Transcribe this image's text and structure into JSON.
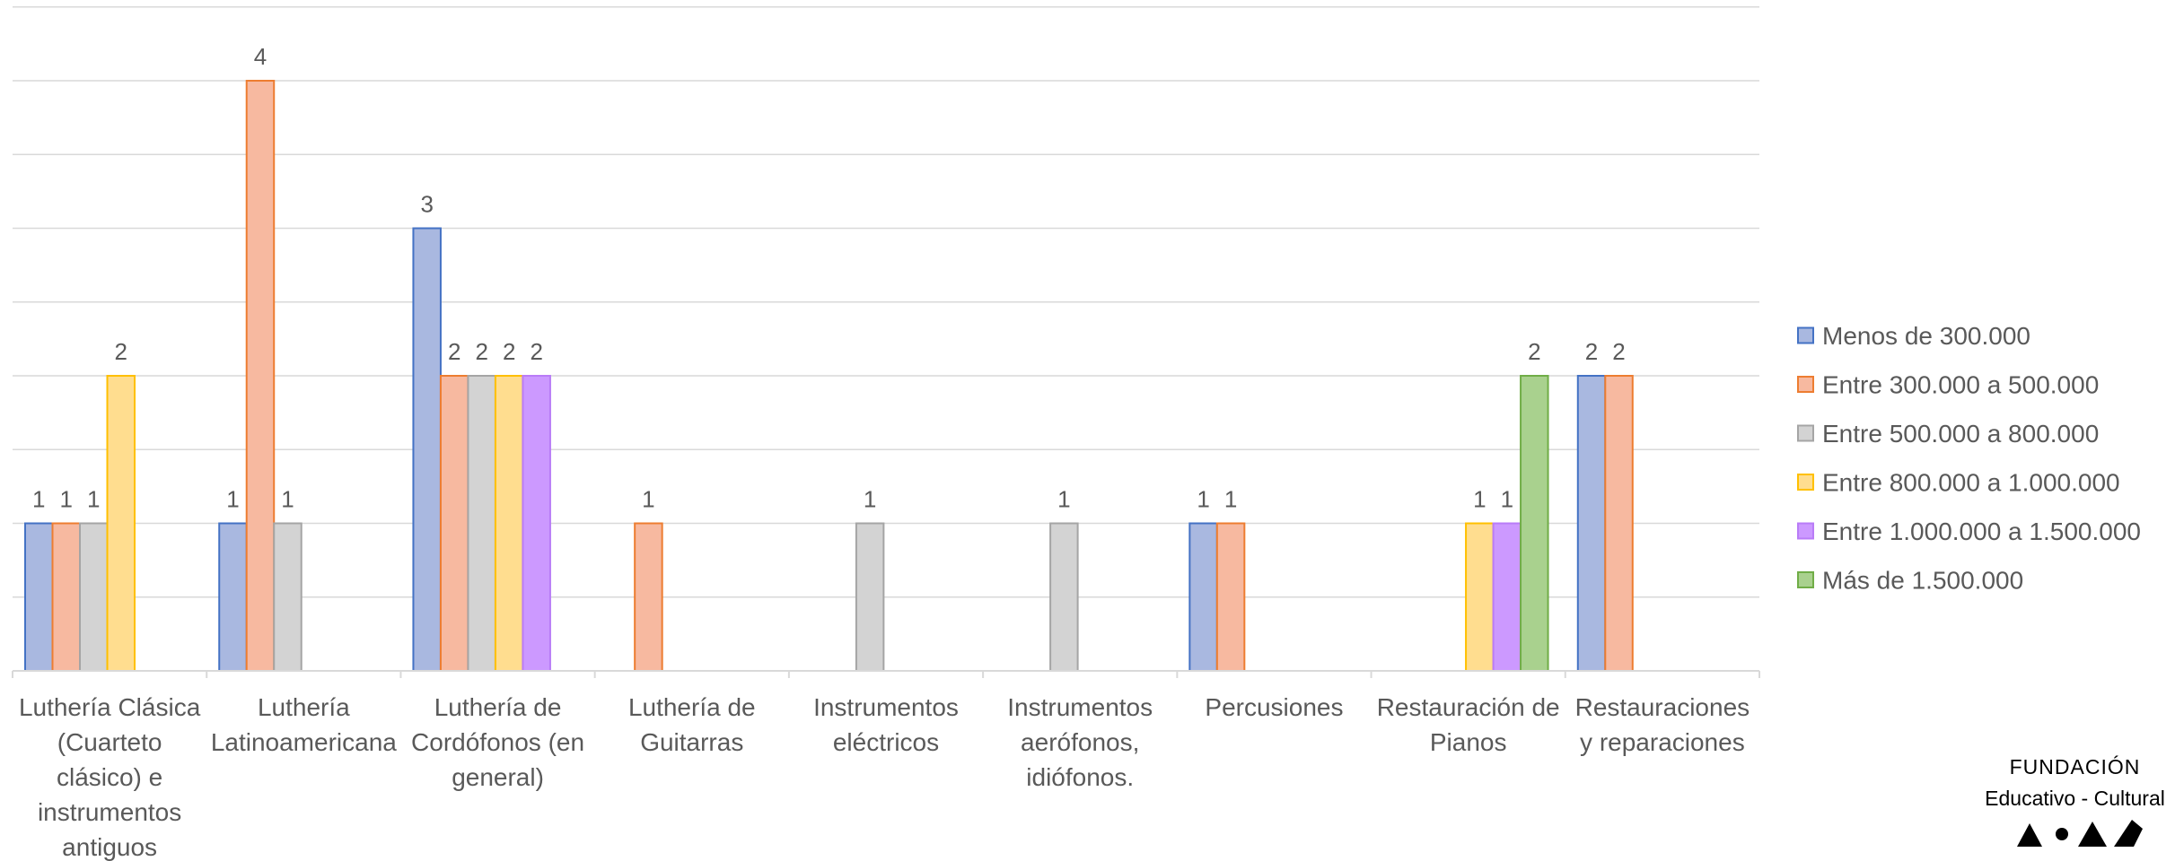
{
  "chart_data": {
    "type": "bar",
    "title": "",
    "xlabel": "",
    "ylabel": "",
    "ylim": [
      0,
      4.5
    ],
    "grid": true,
    "legend_position": "right",
    "categories": [
      [
        "Luthería Clásica",
        "(Cuarteto",
        "clásico) e",
        "instrumentos",
        "antiguos"
      ],
      [
        "Luthería",
        "Latinoamericana"
      ],
      [
        "Luthería de",
        "Cordófonos (en",
        "general)"
      ],
      [
        "Luthería de",
        "Guitarras"
      ],
      [
        "Instrumentos",
        "eléctricos"
      ],
      [
        "Instrumentos",
        "aerófonos,",
        "idiófonos."
      ],
      [
        "Percusiones"
      ],
      [
        "Restauración de",
        "Pianos"
      ],
      [
        "Restauraciones",
        "y reparaciones"
      ]
    ],
    "series": [
      {
        "name": "Menos de 300.000",
        "color": "#A9B8E0",
        "stroke": "#4472C4",
        "values": [
          1,
          1,
          3,
          null,
          null,
          null,
          1,
          null,
          2
        ]
      },
      {
        "name": "Entre 300.000 a 500.000",
        "color": "#F7B9A0",
        "stroke": "#ED7D31",
        "values": [
          1,
          4,
          2,
          1,
          null,
          null,
          1,
          null,
          2
        ]
      },
      {
        "name": "Entre 500.000 a 800.000",
        "color": "#D3D3D3",
        "stroke": "#A5A5A5",
        "values": [
          1,
          1,
          2,
          null,
          1,
          1,
          null,
          null,
          null
        ]
      },
      {
        "name": "Entre 800.000 a 1.000.000",
        "color": "#FFDD8F",
        "stroke": "#FFC000",
        "values": [
          2,
          null,
          2,
          null,
          null,
          null,
          null,
          1,
          null
        ]
      },
      {
        "name": "Entre 1.000.000 a 1.500.000",
        "color": "#CC99FF",
        "stroke": "#B97CF7",
        "values": [
          null,
          null,
          2,
          null,
          null,
          null,
          null,
          1,
          null
        ]
      },
      {
        "name": "Más de 1.500.000",
        "color": "#A9D18E",
        "stroke": "#70AD47",
        "values": [
          null,
          null,
          null,
          null,
          null,
          null,
          null,
          2,
          null
        ]
      }
    ]
  },
  "logo": {
    "line1": "FUNDACIÓN",
    "line2": "Educativo - Cultural"
  }
}
